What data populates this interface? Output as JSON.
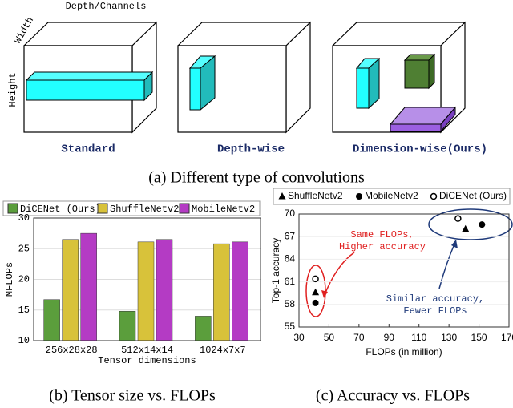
{
  "diagram": {
    "axis_labels": [
      "Depth/Channels",
      "Width",
      "Height"
    ],
    "labels": [
      "Standard",
      "Depth-wise",
      "Dimension-wise(Ours)"
    ],
    "caption": "(a) Different type of convolutions"
  },
  "chart_data": [
    {
      "type": "bar",
      "caption": "(b) Tensor size vs. FLOPs",
      "categories": [
        "256x28x28",
        "512x14x14",
        "1024x7x7"
      ],
      "series": [
        {
          "name": "DiCENet (Ours)",
          "color": "#5b9e3c",
          "values": [
            16.7,
            14.8,
            14.0
          ]
        },
        {
          "name": "ShuffleNetv2",
          "color": "#d8c23a",
          "values": [
            26.5,
            26.1,
            25.8
          ]
        },
        {
          "name": "MobileNetv2",
          "color": "#b43bc4",
          "values": [
            27.5,
            26.5,
            26.1
          ]
        }
      ],
      "ylim": [
        10,
        30
      ],
      "yticks": [
        10,
        15,
        20,
        25,
        30
      ],
      "ylabel": "MFLOPs",
      "xlabel": "Tensor dimensions",
      "grid": true
    },
    {
      "type": "scatter",
      "caption": "(c) Accuracy vs. FLOPs",
      "series": [
        {
          "name": "ShuffleNetv2",
          "marker": "triangle",
          "color": "#000000",
          "x": [
            41,
            141
          ],
          "values": [
            59.6,
            68.0
          ]
        },
        {
          "name": "MobileNetv2",
          "marker": "circle",
          "color": "#000000",
          "x": [
            41,
            152
          ],
          "values": [
            58.2,
            68.6
          ]
        },
        {
          "name": "DiCENet (Ours)",
          "marker": "open-circle",
          "color": "#000000",
          "x": [
            41,
            136
          ],
          "values": [
            61.4,
            69.4
          ]
        }
      ],
      "xlim": [
        30,
        170
      ],
      "xticks": [
        30,
        50,
        70,
        90,
        110,
        130,
        150,
        170
      ],
      "ylim": [
        55,
        70
      ],
      "yticks": [
        55,
        58,
        61,
        64,
        67,
        70
      ],
      "xlabel": "FLOPs (in million)",
      "ylabel": "Top-1 accuracy",
      "annotations": [
        {
          "text": [
            "Same FLOPs,",
            "Higher accuracy"
          ],
          "color": "#e02020"
        },
        {
          "text": [
            "Similar accuracy,",
            "Fewer FLOPs"
          ],
          "color": "#1f3a7a"
        }
      ]
    }
  ]
}
